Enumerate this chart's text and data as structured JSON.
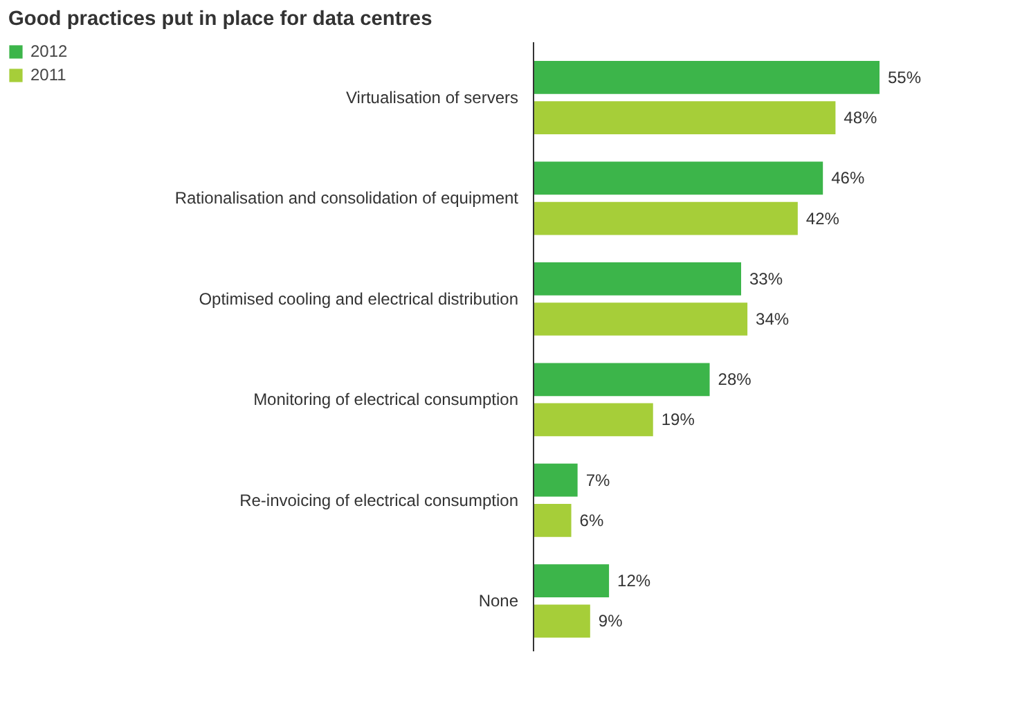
{
  "chart_data": {
    "type": "bar",
    "orientation": "horizontal",
    "title": "Good practices put in place for data centres",
    "categories": [
      "Virtualisation of servers",
      "Rationalisation and consolidation of equipment",
      "Optimised cooling and electrical distribution",
      "Monitoring of electrical consumption",
      "Re-invoicing of electrical consumption",
      "None"
    ],
    "series": [
      {
        "name": "2012",
        "color": "#3cb54a",
        "values": [
          55,
          46,
          33,
          28,
          7,
          12
        ],
        "value_labels": [
          "55%",
          "46%",
          "33%",
          "28%",
          "7%",
          "12%"
        ]
      },
      {
        "name": "2011",
        "color": "#a6ce39",
        "values": [
          48,
          42,
          34,
          19,
          6,
          9
        ],
        "value_labels": [
          "48%",
          "42%",
          "34%",
          "19%",
          "6%",
          "9%"
        ]
      }
    ],
    "legend": "top left"
  }
}
